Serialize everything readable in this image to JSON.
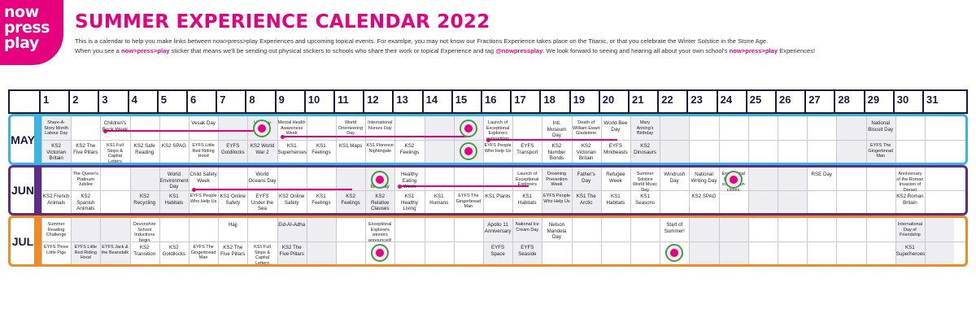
{
  "logo": {
    "line1": "now",
    "line2": "press",
    "line3": "play"
  },
  "title": "SUMMER EXPERIENCE CALENDAR 2022",
  "intro": {
    "line1": "This is a calendar to help you make links between now>press>play Experiences and upcoming topical events. For examlpe, you may not know our Fractions Experience takes place on the Titanic, or that you celebrate the Winter Solstice in the Stone Age.",
    "line2a": "When you see a ",
    "line2b": "now>press>play",
    "line2c": " sticker that means we'll be sending out physical stickers to schools who share their work or topical Experience and tag ",
    "line2d": "@nowpressplay",
    "line2e": ". We look forward to seeing and hearing all about your own school's ",
    "line2f": "now>press>play",
    "line2g": " Experiences!"
  },
  "days": [
    "1",
    "2",
    "3",
    "4",
    "5",
    "6",
    "7",
    "8",
    "9",
    "10",
    "11",
    "12",
    "13",
    "14",
    "15",
    "16",
    "17",
    "18",
    "19",
    "20",
    "21",
    "22",
    "23",
    "24",
    "25",
    "26",
    "27",
    "28",
    "29",
    "30",
    "31"
  ],
  "colors": {
    "may": "#3ab4e0",
    "jun": "#5b2d86",
    "jul": "#f08a24",
    "pink": "#e6007e"
  },
  "months": {
    "may": {
      "label": "MAY",
      "top": [
        {
          "d": 1,
          "t": "Share-A-Story Month Labour Day"
        },
        {
          "d": 3,
          "t": "Children's Book Week"
        },
        {
          "d": 6,
          "t": "Vesak Day"
        },
        {
          "d": 8,
          "t": "VE Day"
        },
        {
          "d": 9,
          "t": "Mental Health Awareness Week"
        },
        {
          "d": 11,
          "t": "World Orienteering Day"
        },
        {
          "d": 12,
          "t": "International Nurses Day"
        },
        {
          "d": 16,
          "t": "Launch of Exceptional Explorers competition"
        },
        {
          "d": 18,
          "t": "Intl. Museum Day"
        },
        {
          "d": 19,
          "t": "Death of William Ewart Gladstone"
        },
        {
          "d": 20,
          "t": "World Bee Day"
        },
        {
          "d": 21,
          "t": "Mary Anning's Birthday"
        },
        {
          "d": 29,
          "t": "National Biscuit Day"
        }
      ],
      "bottom": [
        {
          "d": 1,
          "t": "KS2 Victorian Britain"
        },
        {
          "d": 2,
          "t": "KS2 The Five Pillars"
        },
        {
          "d": 3,
          "t": "KS1 Full Stops & Capital Letters"
        },
        {
          "d": 4,
          "t": "KS2 Safe Reading"
        },
        {
          "d": 5,
          "t": "KS2 SPAG"
        },
        {
          "d": 6,
          "t": "EYFS Little Red Riding Hood"
        },
        {
          "d": 7,
          "t": "EYFS Goldilocks"
        },
        {
          "d": 8,
          "t": "KS2 World War 2"
        },
        {
          "d": 9,
          "t": "KS1 Superheroes"
        },
        {
          "d": 10,
          "t": "KS1 Feelings"
        },
        {
          "d": 11,
          "t": "KS1 Maps"
        },
        {
          "d": 12,
          "t": "KS1 Florence Nightingale"
        },
        {
          "d": 13,
          "t": "KS2 Feelings"
        },
        {
          "d": 16,
          "t": "EYFS People Who Help Us"
        },
        {
          "d": 17,
          "t": "EYFS Transport"
        },
        {
          "d": 18,
          "t": "KS2 Number Bonds"
        },
        {
          "d": 19,
          "t": "KS2 Victorian Britain"
        },
        {
          "d": 20,
          "t": "EYFS Minibeasts"
        },
        {
          "d": 21,
          "t": "KS2 Dinosaurs"
        },
        {
          "d": 29,
          "t": "EYFS The Gingerbread Man"
        }
      ]
    },
    "jun": {
      "label": "JUN",
      "top": [
        {
          "d": 2,
          "t": "The Queen's Platinum Jubilee"
        },
        {
          "d": 5,
          "t": "World Environment Day"
        },
        {
          "d": 6,
          "t": "Child Safety Week"
        },
        {
          "d": 8,
          "t": "World Oceans Day"
        },
        {
          "d": 12,
          "t": "Anne Frank's Birthday"
        },
        {
          "d": 13,
          "t": "Healthy Eating Week"
        },
        {
          "d": 17,
          "t": "Launch of Exceptional Explorers"
        },
        {
          "d": 18,
          "t": "Drowning Prevention Week"
        },
        {
          "d": 19,
          "t": "Father's Day"
        },
        {
          "d": 20,
          "t": "Refugee Week"
        },
        {
          "d": 21,
          "t": "Summer Solstice World Music Day"
        },
        {
          "d": 22,
          "t": "Windrush Day"
        },
        {
          "d": 23,
          "t": "National Writing Day"
        },
        {
          "d": 24,
          "t": "Exceptional Explorers competition closes"
        },
        {
          "d": 27,
          "t": "RSE Day"
        },
        {
          "d": 30,
          "t": "Anniversary of the Roman Invasion of Dorset"
        }
      ],
      "bottom": [
        {
          "d": 1,
          "t": "KS2 French Animals"
        },
        {
          "d": 2,
          "t": "KS2 Spanish Animals"
        },
        {
          "d": 4,
          "t": "KS2 Recycling"
        },
        {
          "d": 5,
          "t": "KS1 Habitats"
        },
        {
          "d": 6,
          "t": "EYFS People Who Help Us"
        },
        {
          "d": 7,
          "t": "KS1 Online Safety"
        },
        {
          "d": 8,
          "t": "EYFS Under the Sea"
        },
        {
          "d": 9,
          "t": "KS2 Online Safety"
        },
        {
          "d": 10,
          "t": "KS1 Feelings"
        },
        {
          "d": 11,
          "t": "KS2 Feelings"
        },
        {
          "d": 12,
          "t": "KS2 Relative Clauses"
        },
        {
          "d": 13,
          "t": "KS1 Healthy Living"
        },
        {
          "d": 14,
          "t": "KS1 Humans"
        },
        {
          "d": 15,
          "t": "EYFS The Gingerbread Man"
        },
        {
          "d": 16,
          "t": "KS1 Plants"
        },
        {
          "d": 17,
          "t": "KS1 Habitats"
        },
        {
          "d": 18,
          "t": "EYFS People Who Help Us"
        },
        {
          "d": 19,
          "t": "KS1 The Arctic"
        },
        {
          "d": 20,
          "t": "KS1 Habitats"
        },
        {
          "d": 21,
          "t": "KS1 Seasons"
        },
        {
          "d": 23,
          "t": "KS2 SPAG"
        },
        {
          "d": 30,
          "t": "KS2 Roman Britain"
        }
      ]
    },
    "jul": {
      "label": "JUL",
      "top": [
        {
          "d": 1,
          "t": "Summer Reading Challenge"
        },
        {
          "d": 4,
          "t": "Devonshire School Inductions begin"
        },
        {
          "d": 7,
          "t": "Hajj"
        },
        {
          "d": 9,
          "t": "Eid-Al-Adha"
        },
        {
          "d": 12,
          "t": "Exceptional Explorers winners announced!"
        },
        {
          "d": 16,
          "t": "Apollo 11 Anniversary"
        },
        {
          "d": 17,
          "t": "National Ice Cream Day"
        },
        {
          "d": 18,
          "t": "Nelson Mandela Day"
        },
        {
          "d": 22,
          "t": "Start of Summer!"
        },
        {
          "d": 30,
          "t": "International Day of Friendship"
        }
      ],
      "bottom": [
        {
          "d": 1,
          "t": "EYFS Three Little Pigs"
        },
        {
          "d": 2,
          "t": "EYFS Little Red Riding Hood"
        },
        {
          "d": 3,
          "t": "EYFS Jack & the Beanstalk"
        },
        {
          "d": 4,
          "t": "KS2 Transition"
        },
        {
          "d": 5,
          "t": "KS2 Goldilocks"
        },
        {
          "d": 6,
          "t": "EYFS The Gingerbread Man"
        },
        {
          "d": 7,
          "t": "KS2 The Five Pillars"
        },
        {
          "d": 8,
          "t": "KS1 Full Stops & Capital Letters"
        },
        {
          "d": 9,
          "t": "KS2 The Five Pillars"
        },
        {
          "d": 16,
          "t": "EYFS Space"
        },
        {
          "d": 17,
          "t": "EYFS Seaside"
        },
        {
          "d": 30,
          "t": "KS1 Superheroes"
        }
      ]
    }
  }
}
